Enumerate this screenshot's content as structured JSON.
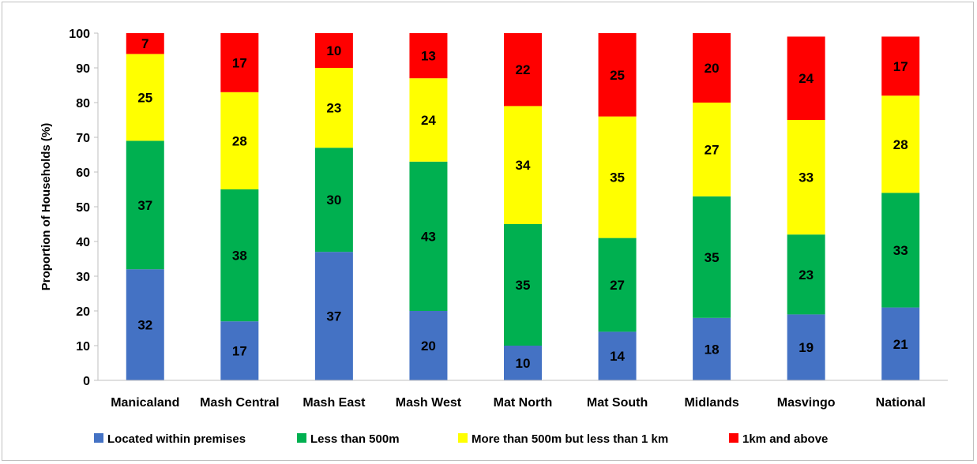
{
  "chart_data": {
    "type": "bar",
    "stacked": true,
    "categories": [
      "Manicaland",
      "Mash Central",
      "Mash East",
      "Mash West",
      "Mat North",
      "Mat South",
      "Midlands",
      "Masvingo",
      "National"
    ],
    "series": [
      {
        "name": "Located within premises",
        "color": "#4472C4",
        "values": [
          32,
          17,
          37,
          20,
          10,
          14,
          18,
          19,
          21
        ]
      },
      {
        "name": "Less than 500m",
        "color": "#00B050",
        "values": [
          37,
          38,
          30,
          43,
          35,
          27,
          35,
          23,
          33
        ]
      },
      {
        "name": "More than 500m but less than 1 km",
        "color": "#FFFF00",
        "values": [
          25,
          28,
          23,
          24,
          34,
          35,
          27,
          33,
          28
        ]
      },
      {
        "name": "1km and above",
        "color": "#FF0000",
        "values": [
          7,
          17,
          10,
          13,
          22,
          25,
          20,
          24,
          17
        ]
      }
    ],
    "ylabel": "Proportion of Households (%)",
    "ylim": [
      0,
      100
    ],
    "yticks": [
      "0",
      "10",
      "20",
      "30",
      "40",
      "50",
      "60",
      "70",
      "80",
      "90",
      "100"
    ],
    "grid": false,
    "legend": "bottom"
  }
}
